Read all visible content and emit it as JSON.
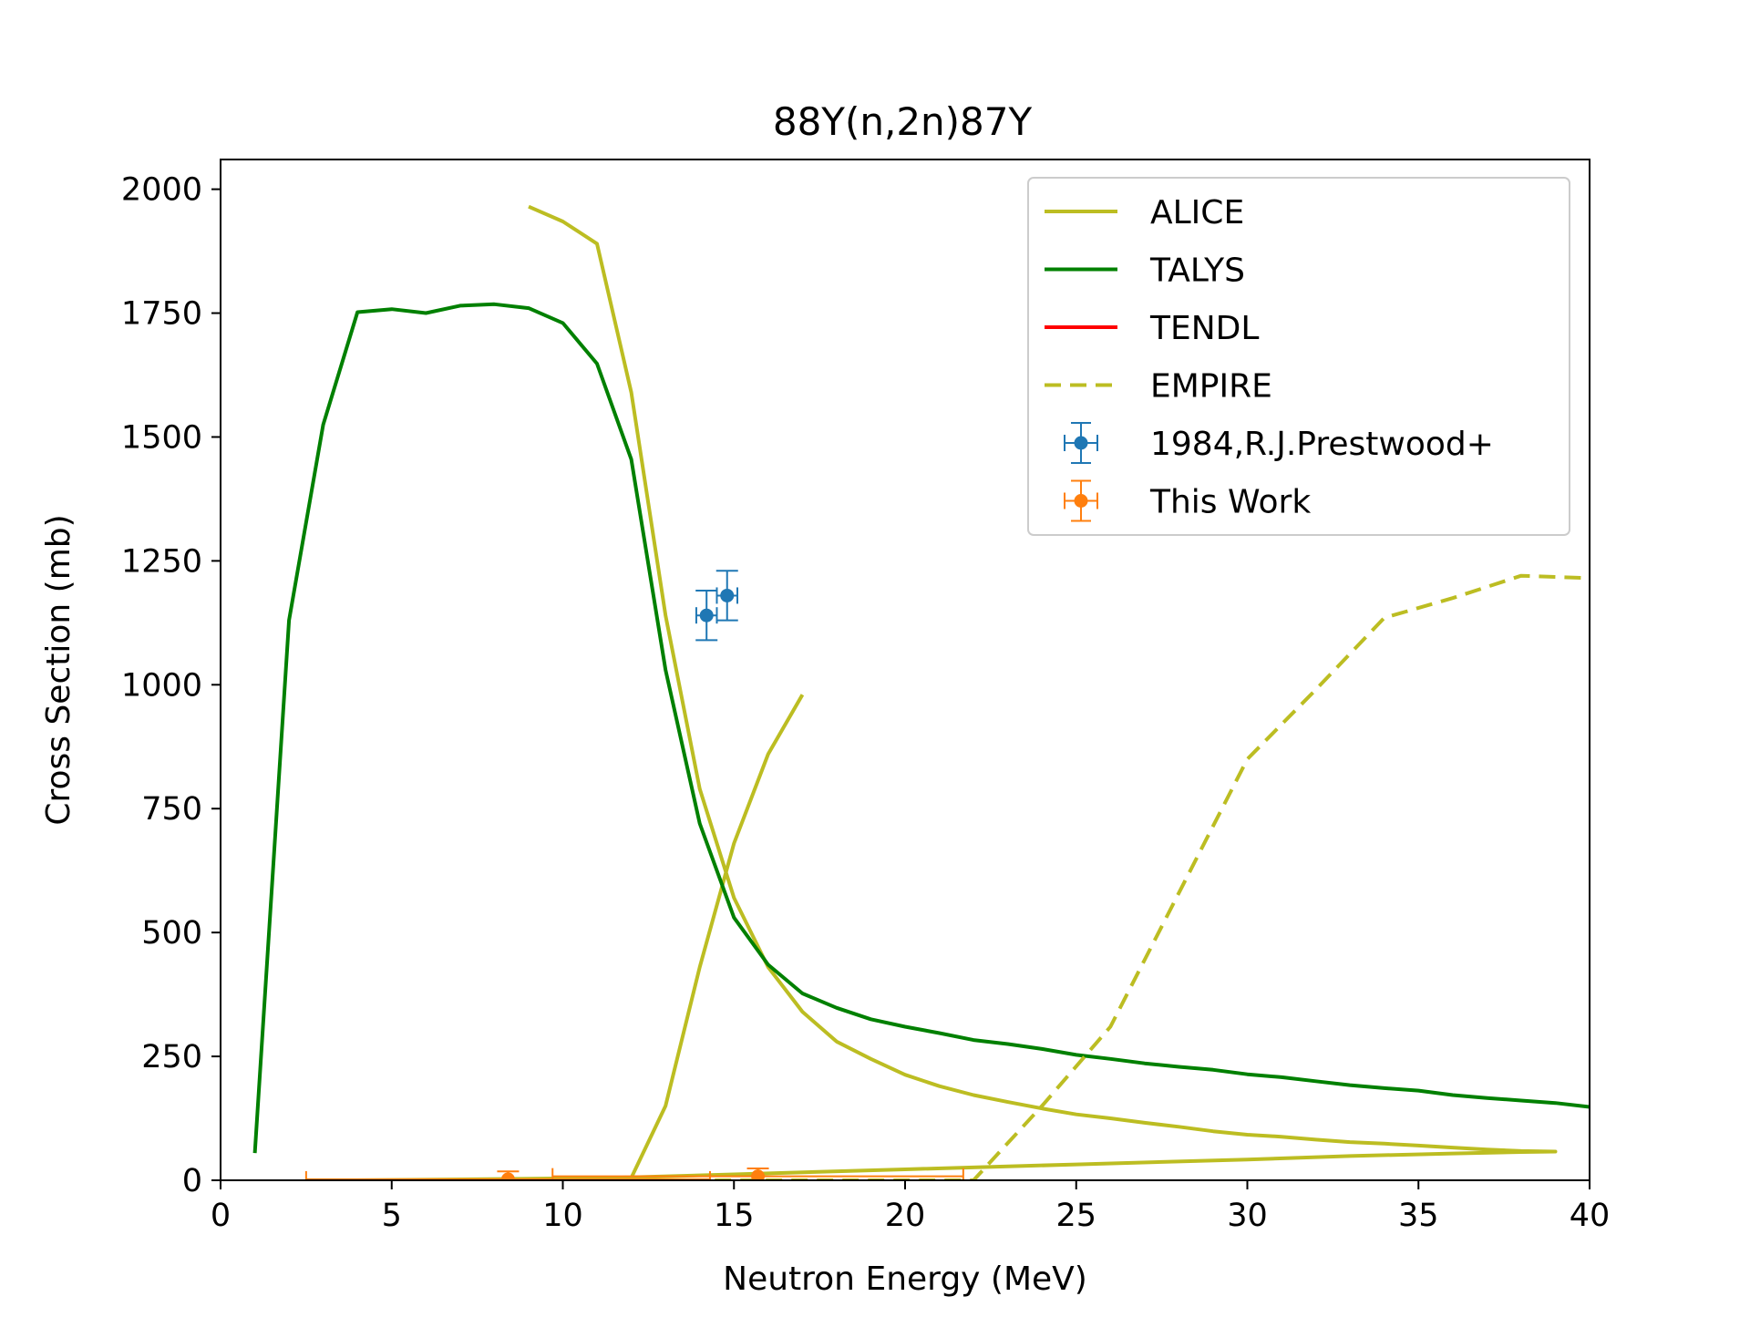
{
  "chart_data": {
    "type": "line",
    "title": "88Y(n,2n)87Y",
    "xlabel": "Neutron Energy (MeV)",
    "ylabel": "Cross Section (mb)",
    "xlim": [
      0,
      40
    ],
    "ylim": [
      0,
      2060
    ],
    "xticks": [
      0,
      5,
      10,
      15,
      20,
      25,
      30,
      35,
      40
    ],
    "yticks": [
      0,
      250,
      500,
      750,
      1000,
      1250,
      1500,
      1750,
      2000
    ],
    "grid": false,
    "legend_position": "top-right",
    "series": [
      {
        "name": "ALICE",
        "style": "solid",
        "color": "#bcbd22",
        "x": [
          9,
          10,
          11,
          12,
          13,
          14,
          15,
          16,
          17,
          18,
          19,
          20,
          21,
          22,
          23,
          24,
          25,
          26,
          27,
          28,
          29,
          30,
          31,
          32,
          33,
          34,
          35,
          36,
          37,
          38,
          39,
          38,
          36,
          33,
          30,
          25,
          20,
          15,
          12,
          10,
          8,
          6,
          4,
          12,
          13,
          14,
          15,
          16,
          17
        ],
        "y": [
          1965,
          1935,
          1890,
          1590,
          1140,
          790,
          570,
          430,
          340,
          280,
          245,
          213,
          190,
          172,
          158,
          145,
          133,
          125,
          116,
          108,
          99,
          92,
          88,
          82,
          77,
          74,
          70,
          66,
          62,
          59,
          58,
          57,
          54,
          49,
          42,
          32,
          22,
          12,
          6,
          3,
          1,
          0,
          0,
          5,
          150,
          430,
          680,
          860,
          980
        ]
      },
      {
        "name": "TALYS",
        "style": "solid",
        "color": "#008000",
        "x": [
          1,
          2,
          3,
          4,
          5,
          6,
          7,
          8,
          9,
          10,
          11,
          12,
          13,
          14,
          15,
          16,
          17,
          18,
          19,
          20,
          21,
          22,
          23,
          24,
          25,
          26,
          27,
          28,
          29,
          30,
          31,
          32,
          33,
          34,
          35,
          36,
          37,
          38,
          39,
          40
        ],
        "y": [
          55,
          1130,
          1525,
          1752,
          1758,
          1750,
          1765,
          1768,
          1760,
          1730,
          1648,
          1455,
          1030,
          720,
          530,
          435,
          377,
          348,
          325,
          310,
          297,
          283,
          275,
          265,
          253,
          245,
          236,
          229,
          223,
          214,
          208,
          200,
          192,
          186,
          181,
          172,
          166,
          161,
          156,
          148
        ]
      },
      {
        "name": "TENDL",
        "style": "solid",
        "color": "#ff0000",
        "x": [],
        "y": []
      },
      {
        "name": "EMPIRE",
        "style": "dashed",
        "color": "#bcbd22",
        "x": [
          4,
          6,
          8,
          10,
          12,
          14,
          16,
          18,
          20,
          21,
          22,
          24,
          26,
          28,
          30,
          32,
          34,
          36,
          38,
          40
        ],
        "y": [
          0,
          0,
          0,
          0,
          0,
          0,
          0,
          0,
          0,
          0,
          0,
          150,
          310,
          580,
          850,
          990,
          1135,
          1175,
          1220,
          1215
        ]
      },
      {
        "name": "1984,R.J.Prestwood+",
        "style": "errorbar",
        "color": "#1f77b4",
        "x": [
          14.2,
          14.8
        ],
        "y": [
          1140,
          1180
        ],
        "xerr": [
          0.3,
          0.3
        ],
        "yerr": [
          50,
          50
        ]
      },
      {
        "name": "This Work",
        "style": "errorbar",
        "color": "#ff7f0e",
        "x": [
          8.4,
          15.7
        ],
        "y": [
          2,
          8
        ],
        "xerr": [
          5.9,
          6.0
        ],
        "yerr": [
          16,
          16
        ]
      }
    ]
  }
}
